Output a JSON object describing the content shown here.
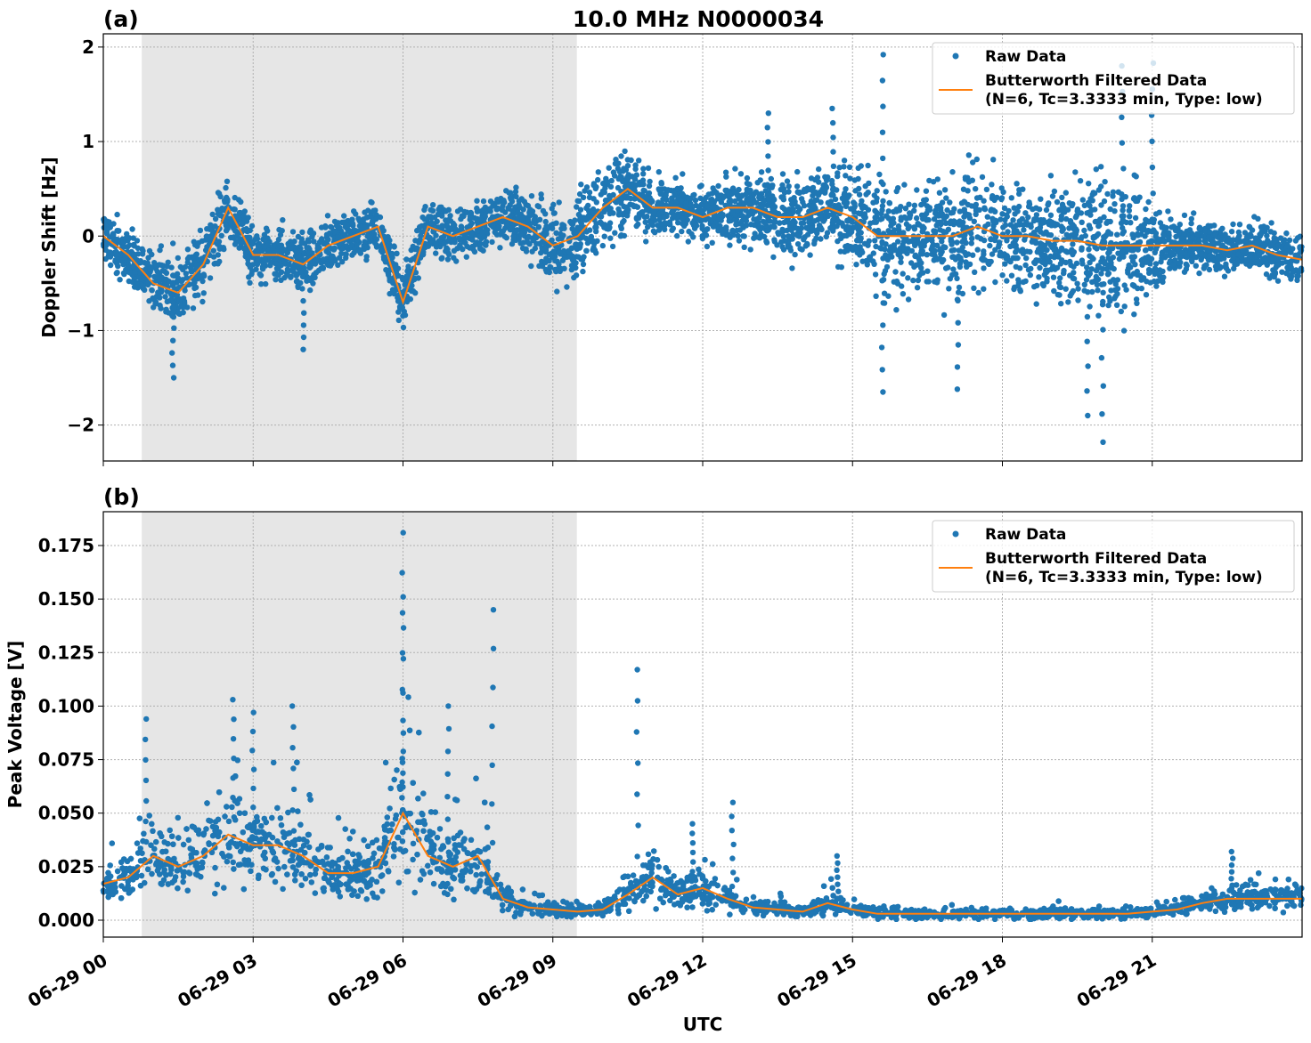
{
  "chart_data": [
    {
      "type": "scatter",
      "panel_label": "(a)",
      "title": "10.0 MHz N0000034",
      "xlabel": "",
      "ylabel": "Doppler Shift [Hz]",
      "xlim_hours_utc": [
        0,
        24
      ],
      "ylim": [
        -2.38,
        2.14
      ],
      "grid": true,
      "yticks": [
        2,
        1,
        0,
        -1,
        -2
      ],
      "ytick_labels": [
        "2",
        "1",
        "0",
        "−1",
        "−2"
      ],
      "shaded_span_hours_utc": [
        0.77,
        9.48
      ],
      "legend": "top-right",
      "series": [
        {
          "name": "Raw Data",
          "kind": "scatter",
          "color": "#1f77b4",
          "center": [
            0,
            -0.2,
            -0.5,
            -0.6,
            -0.3,
            0.3,
            -0.2,
            -0.2,
            -0.3,
            -0.1,
            0,
            0.1,
            -0.7,
            0.1,
            0,
            0.1,
            0.2,
            0.1,
            -0.1,
            0,
            0.3,
            0.5,
            0.3,
            0.3,
            0.2,
            0.3,
            0.3,
            0.2,
            0.2,
            0.3,
            0.2,
            0,
            0,
            0,
            0,
            0.1,
            0,
            0,
            -0.05,
            -0.05,
            -0.1,
            -0.1,
            -0.1,
            -0.1,
            -0.1,
            -0.15,
            -0.1,
            -0.2,
            -0.25
          ],
          "half_spread": [
            0.3,
            0.3,
            0.35,
            0.45,
            0.4,
            0.35,
            0.35,
            0.3,
            0.35,
            0.35,
            0.3,
            0.3,
            0.35,
            0.3,
            0.3,
            0.3,
            0.3,
            0.35,
            0.5,
            0.55,
            0.45,
            0.5,
            0.35,
            0.3,
            0.3,
            0.35,
            0.4,
            0.45,
            0.45,
            0.45,
            0.6,
            0.7,
            0.7,
            0.65,
            0.7,
            0.7,
            0.65,
            0.65,
            0.7,
            0.75,
            0.8,
            0.8,
            0.5,
            0.3,
            0.3,
            0.3,
            0.3,
            0.3,
            0.3
          ],
          "outliers": [
            [
              15.6,
              1.92
            ],
            [
              15.6,
              -1.65
            ],
            [
              17.1,
              -1.62
            ],
            [
              19.7,
              -1.9
            ],
            [
              20.0,
              -2.18
            ],
            [
              20.4,
              1.8
            ],
            [
              21.0,
              1.83
            ],
            [
              13.3,
              1.3
            ],
            [
              14.6,
              1.35
            ],
            [
              1.4,
              -1.5
            ],
            [
              4.0,
              -1.2
            ]
          ]
        },
        {
          "name": "Butterworth Filtered Data\n(N=6, Tc=3.3333 min, Type: low)",
          "kind": "line",
          "color": "#ff7f0e",
          "values": [
            0,
            -0.2,
            -0.5,
            -0.6,
            -0.3,
            0.3,
            -0.2,
            -0.2,
            -0.3,
            -0.1,
            0,
            0.1,
            -0.7,
            0.1,
            0,
            0.1,
            0.2,
            0.1,
            -0.1,
            0,
            0.3,
            0.5,
            0.3,
            0.3,
            0.2,
            0.3,
            0.3,
            0.2,
            0.2,
            0.3,
            0.2,
            0,
            0,
            0,
            0,
            0.1,
            0,
            0,
            -0.05,
            -0.05,
            -0.1,
            -0.1,
            -0.1,
            -0.1,
            -0.1,
            -0.15,
            -0.1,
            -0.2,
            -0.25
          ]
        }
      ]
    },
    {
      "type": "scatter",
      "panel_label": "(b)",
      "title": "",
      "xlabel": "UTC",
      "ylabel": "Peak Voltage [V]",
      "xlim_hours_utc": [
        0,
        24
      ],
      "ylim": [
        -0.0079,
        0.1908
      ],
      "grid": true,
      "yticks": [
        0.175,
        0.15,
        0.125,
        0.1,
        0.075,
        0.05,
        0.025,
        0
      ],
      "ytick_labels": [
        "0.175",
        "0.150",
        "0.125",
        "0.100",
        "0.075",
        "0.050",
        "0.025",
        "0.000"
      ],
      "shaded_span_hours_utc": [
        0.77,
        9.48
      ],
      "legend": "top-right",
      "series": [
        {
          "name": "Raw Data",
          "kind": "scatter",
          "color": "#1f77b4",
          "center": [
            0.017,
            0.02,
            0.03,
            0.025,
            0.03,
            0.04,
            0.035,
            0.035,
            0.03,
            0.022,
            0.022,
            0.025,
            0.05,
            0.03,
            0.025,
            0.03,
            0.01,
            0.006,
            0.005,
            0.004,
            0.005,
            0.012,
            0.02,
            0.012,
            0.015,
            0.01,
            0.006,
            0.005,
            0.004,
            0.008,
            0.005,
            0.003,
            0.003,
            0.003,
            0.003,
            0.003,
            0.003,
            0.003,
            0.003,
            0.003,
            0.003,
            0.003,
            0.004,
            0.005,
            0.008,
            0.01,
            0.01,
            0.01,
            0.01
          ],
          "outliers": [
            [
              0.85,
              0.094
            ],
            [
              2.6,
              0.103
            ],
            [
              3.0,
              0.097
            ],
            [
              3.8,
              0.1
            ],
            [
              6.0,
              0.181
            ],
            [
              6.0,
              0.151
            ],
            [
              6.9,
              0.1
            ],
            [
              7.8,
              0.145
            ],
            [
              10.7,
              0.117
            ],
            [
              11.8,
              0.045
            ],
            [
              12.6,
              0.055
            ],
            [
              14.7,
              0.03
            ],
            [
              22.6,
              0.032
            ]
          ]
        },
        {
          "name": "Butterworth Filtered Data\n(N=6, Tc=3.3333 min, Type: low)",
          "kind": "line",
          "color": "#ff7f0e",
          "values": [
            0.017,
            0.02,
            0.03,
            0.025,
            0.03,
            0.04,
            0.035,
            0.035,
            0.03,
            0.022,
            0.022,
            0.025,
            0.05,
            0.03,
            0.025,
            0.03,
            0.01,
            0.006,
            0.005,
            0.004,
            0.005,
            0.012,
            0.02,
            0.012,
            0.015,
            0.01,
            0.006,
            0.005,
            0.004,
            0.008,
            0.005,
            0.003,
            0.003,
            0.003,
            0.003,
            0.003,
            0.003,
            0.003,
            0.003,
            0.003,
            0.003,
            0.003,
            0.004,
            0.005,
            0.008,
            0.01,
            0.01,
            0.01,
            0.01
          ]
        }
      ]
    }
  ],
  "x_step_hours": 0.5,
  "xticks_hours": [
    0,
    3,
    6,
    9,
    12,
    15,
    18,
    21
  ],
  "xtick_labels": [
    "06-29 00",
    "06-29 03",
    "06-29 06",
    "06-29 09",
    "06-29 12",
    "06-29 15",
    "06-29 18",
    "06-29 21"
  ],
  "legend": {
    "raw": "Raw Data",
    "filt1": "Butterworth Filtered Data",
    "filt2": "(N=6, Tc=3.3333 min, Type: low)"
  }
}
